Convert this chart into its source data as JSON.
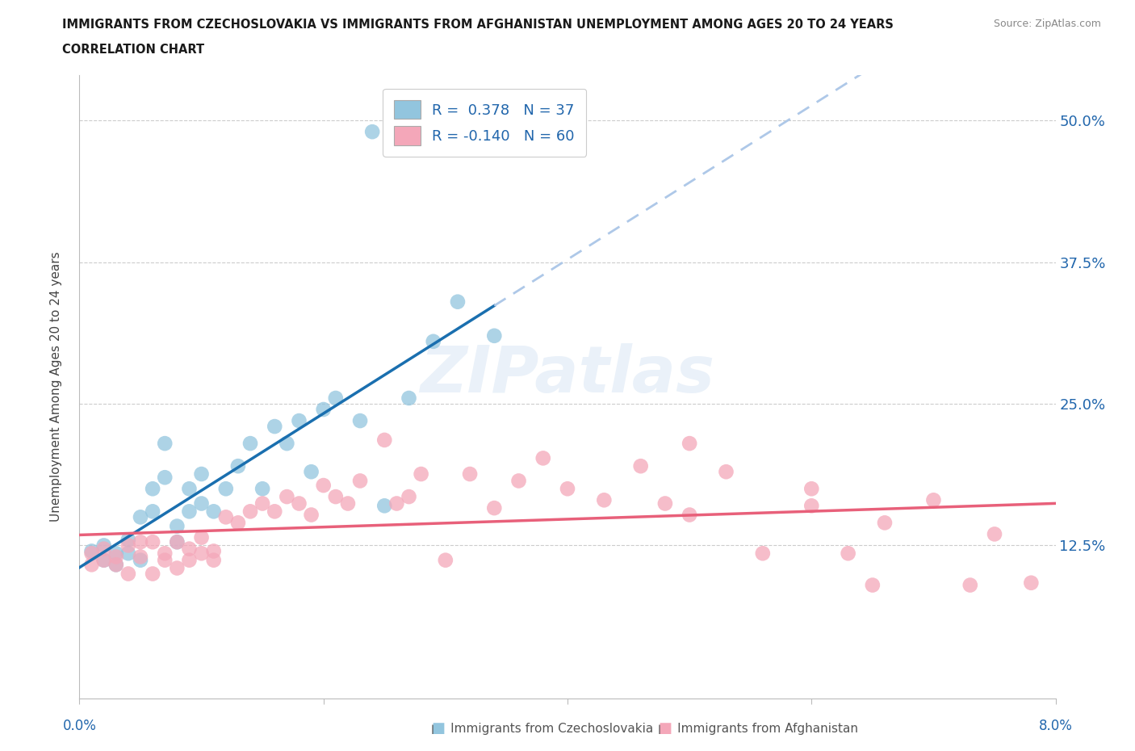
{
  "title_line1": "IMMIGRANTS FROM CZECHOSLOVAKIA VS IMMIGRANTS FROM AFGHANISTAN UNEMPLOYMENT AMONG AGES 20 TO 24 YEARS",
  "title_line2": "CORRELATION CHART",
  "source": "Source: ZipAtlas.com",
  "ylabel": "Unemployment Among Ages 20 to 24 years",
  "xmin": 0.0,
  "xmax": 0.08,
  "ymin": -0.01,
  "ymax": 0.54,
  "yticks": [
    0.0,
    0.125,
    0.25,
    0.375,
    0.5
  ],
  "ytick_labels": [
    "",
    "12.5%",
    "25.0%",
    "37.5%",
    "50.0%"
  ],
  "watermark_text": "ZIPatlas",
  "legend_r1": "R =  0.378   N = 37",
  "legend_r2": "R = -0.140   N = 60",
  "color_czech": "#92c5de",
  "color_afghan": "#f4a7b9",
  "trendline_czech_solid": "#1a6faf",
  "trendline_czech_dash": "#aec8e8",
  "trendline_afghan": "#e8607a",
  "czech_x": [
    0.001,
    0.002,
    0.002,
    0.003,
    0.003,
    0.004,
    0.004,
    0.005,
    0.005,
    0.006,
    0.006,
    0.007,
    0.007,
    0.008,
    0.008,
    0.009,
    0.009,
    0.01,
    0.01,
    0.011,
    0.012,
    0.013,
    0.014,
    0.015,
    0.016,
    0.017,
    0.018,
    0.019,
    0.02,
    0.021,
    0.023,
    0.024,
    0.025,
    0.027,
    0.029,
    0.031,
    0.034
  ],
  "czech_y": [
    0.12,
    0.112,
    0.125,
    0.108,
    0.118,
    0.13,
    0.118,
    0.112,
    0.15,
    0.155,
    0.175,
    0.185,
    0.215,
    0.128,
    0.142,
    0.155,
    0.175,
    0.162,
    0.188,
    0.155,
    0.175,
    0.195,
    0.215,
    0.175,
    0.23,
    0.215,
    0.235,
    0.19,
    0.245,
    0.255,
    0.235,
    0.49,
    0.16,
    0.255,
    0.305,
    0.34,
    0.31
  ],
  "afghan_x": [
    0.001,
    0.001,
    0.002,
    0.002,
    0.003,
    0.003,
    0.004,
    0.004,
    0.005,
    0.005,
    0.006,
    0.006,
    0.007,
    0.007,
    0.008,
    0.008,
    0.009,
    0.009,
    0.01,
    0.01,
    0.011,
    0.011,
    0.012,
    0.013,
    0.014,
    0.015,
    0.016,
    0.017,
    0.018,
    0.019,
    0.02,
    0.021,
    0.022,
    0.023,
    0.025,
    0.026,
    0.027,
    0.028,
    0.03,
    0.032,
    0.034,
    0.036,
    0.038,
    0.04,
    0.043,
    0.046,
    0.048,
    0.05,
    0.053,
    0.056,
    0.06,
    0.063,
    0.066,
    0.07,
    0.073,
    0.06,
    0.05,
    0.075,
    0.065,
    0.078
  ],
  "afghan_y": [
    0.108,
    0.118,
    0.112,
    0.122,
    0.115,
    0.108,
    0.125,
    0.1,
    0.115,
    0.128,
    0.1,
    0.128,
    0.118,
    0.112,
    0.105,
    0.128,
    0.122,
    0.112,
    0.118,
    0.132,
    0.112,
    0.12,
    0.15,
    0.145,
    0.155,
    0.162,
    0.155,
    0.168,
    0.162,
    0.152,
    0.178,
    0.168,
    0.162,
    0.182,
    0.218,
    0.162,
    0.168,
    0.188,
    0.112,
    0.188,
    0.158,
    0.182,
    0.202,
    0.175,
    0.165,
    0.195,
    0.162,
    0.152,
    0.19,
    0.118,
    0.16,
    0.118,
    0.145,
    0.165,
    0.09,
    0.175,
    0.215,
    0.135,
    0.09,
    0.092
  ],
  "trendline_czech_x0": 0.0,
  "trendline_czech_x_solid_end": 0.034,
  "trendline_czech_x_end": 0.08,
  "trendline_afghan_x0": 0.0,
  "trendline_afghan_x_end": 0.08
}
